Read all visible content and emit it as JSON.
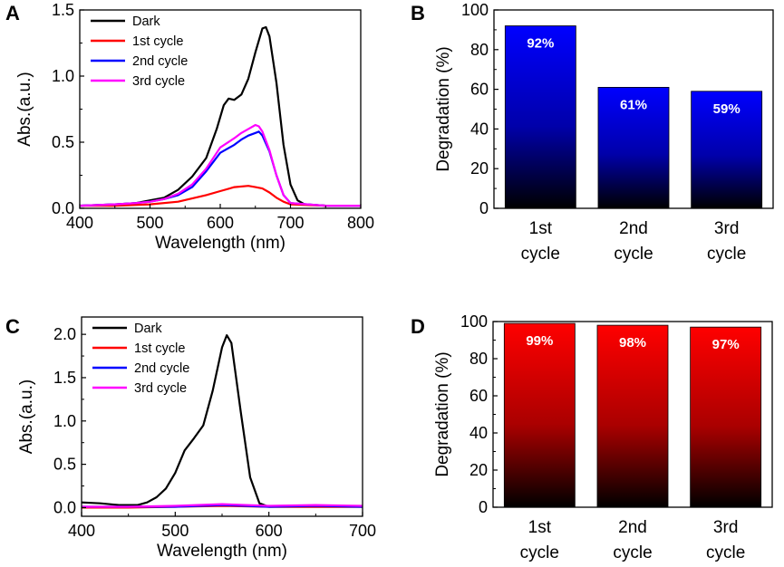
{
  "chart_data": [
    {
      "panel": "A",
      "type": "line",
      "xlabel": "Wavelength (nm)",
      "ylabel": "Abs.(a.u.)",
      "xlim": [
        400,
        800
      ],
      "ylim": [
        0,
        1.5
      ],
      "xticks": [
        400,
        500,
        600,
        700,
        800
      ],
      "yticks": [
        0.0,
        0.5,
        1.0,
        1.5
      ],
      "tick_labels_y": [
        "0.0",
        "0.5",
        "1.0",
        "1.5"
      ],
      "legend": "top-left",
      "grid": false,
      "series": [
        {
          "name": "Dark",
          "color": "#000000",
          "points": [
            [
              400,
              0.02
            ],
            [
              450,
              0.03
            ],
            [
              480,
              0.04
            ],
            [
              500,
              0.06
            ],
            [
              520,
              0.08
            ],
            [
              540,
              0.14
            ],
            [
              560,
              0.24
            ],
            [
              580,
              0.38
            ],
            [
              595,
              0.6
            ],
            [
              605,
              0.78
            ],
            [
              612,
              0.83
            ],
            [
              620,
              0.82
            ],
            [
              630,
              0.86
            ],
            [
              640,
              0.98
            ],
            [
              650,
              1.18
            ],
            [
              660,
              1.36
            ],
            [
              665,
              1.37
            ],
            [
              670,
              1.3
            ],
            [
              680,
              0.95
            ],
            [
              690,
              0.48
            ],
            [
              700,
              0.18
            ],
            [
              710,
              0.06
            ],
            [
              720,
              0.03
            ],
            [
              750,
              0.02
            ],
            [
              800,
              0.02
            ]
          ]
        },
        {
          "name": "1st cycle",
          "color": "#ff0000",
          "points": [
            [
              400,
              0.02
            ],
            [
              450,
              0.02
            ],
            [
              500,
              0.03
            ],
            [
              540,
              0.05
            ],
            [
              580,
              0.1
            ],
            [
              600,
              0.13
            ],
            [
              620,
              0.16
            ],
            [
              640,
              0.17
            ],
            [
              650,
              0.16
            ],
            [
              660,
              0.15
            ],
            [
              670,
              0.12
            ],
            [
              680,
              0.08
            ],
            [
              690,
              0.05
            ],
            [
              700,
              0.03
            ],
            [
              750,
              0.02
            ],
            [
              800,
              0.02
            ]
          ]
        },
        {
          "name": "2nd cycle",
          "color": "#0000ff",
          "points": [
            [
              400,
              0.02
            ],
            [
              450,
              0.03
            ],
            [
              480,
              0.04
            ],
            [
              500,
              0.05
            ],
            [
              520,
              0.07
            ],
            [
              540,
              0.1
            ],
            [
              560,
              0.16
            ],
            [
              580,
              0.28
            ],
            [
              600,
              0.42
            ],
            [
              620,
              0.48
            ],
            [
              630,
              0.52
            ],
            [
              640,
              0.55
            ],
            [
              650,
              0.57
            ],
            [
              655,
              0.58
            ],
            [
              660,
              0.55
            ],
            [
              670,
              0.43
            ],
            [
              680,
              0.25
            ],
            [
              690,
              0.1
            ],
            [
              700,
              0.04
            ],
            [
              750,
              0.02
            ],
            [
              800,
              0.02
            ]
          ]
        },
        {
          "name": "3rd cycle",
          "color": "#ff00ff",
          "points": [
            [
              400,
              0.02
            ],
            [
              450,
              0.03
            ],
            [
              480,
              0.04
            ],
            [
              500,
              0.05
            ],
            [
              520,
              0.07
            ],
            [
              540,
              0.11
            ],
            [
              560,
              0.18
            ],
            [
              580,
              0.3
            ],
            [
              600,
              0.46
            ],
            [
              620,
              0.53
            ],
            [
              630,
              0.57
            ],
            [
              640,
              0.6
            ],
            [
              650,
              0.63
            ],
            [
              655,
              0.62
            ],
            [
              660,
              0.58
            ],
            [
              670,
              0.44
            ],
            [
              680,
              0.25
            ],
            [
              690,
              0.1
            ],
            [
              700,
              0.04
            ],
            [
              750,
              0.02
            ],
            [
              800,
              0.02
            ]
          ]
        }
      ]
    },
    {
      "panel": "B",
      "type": "bar",
      "ylabel": "Degradation (%)",
      "ylim": [
        0,
        100
      ],
      "yticks": [
        0,
        20,
        40,
        60,
        80,
        100
      ],
      "categories": [
        [
          "1st",
          "cycle"
        ],
        [
          "2nd",
          "cycle"
        ],
        [
          "3rd",
          "cycle"
        ]
      ],
      "values": [
        92,
        61,
        59
      ],
      "value_labels": [
        "92%",
        "61%",
        "59%"
      ],
      "bar_color": "#0000ff"
    },
    {
      "panel": "C",
      "type": "line",
      "xlabel": "Wavelength (nm)",
      "ylabel": "Abs.(a.u.)",
      "xlim": [
        400,
        700
      ],
      "ylim": [
        -0.1,
        2.2
      ],
      "xticks": [
        400,
        500,
        600,
        700
      ],
      "yticks": [
        0.0,
        0.5,
        1.0,
        1.5,
        2.0
      ],
      "tick_labels_y": [
        "0.0",
        "0.5",
        "1.0",
        "1.5",
        "2.0"
      ],
      "legend": "top-left",
      "grid": false,
      "series": [
        {
          "name": "Dark",
          "color": "#000000",
          "points": [
            [
              400,
              0.06
            ],
            [
              420,
              0.05
            ],
            [
              440,
              0.03
            ],
            [
              460,
              0.03
            ],
            [
              470,
              0.06
            ],
            [
              480,
              0.12
            ],
            [
              490,
              0.22
            ],
            [
              500,
              0.4
            ],
            [
              510,
              0.66
            ],
            [
              520,
              0.8
            ],
            [
              530,
              0.95
            ],
            [
              540,
              1.35
            ],
            [
              550,
              1.85
            ],
            [
              555,
              1.99
            ],
            [
              560,
              1.9
            ],
            [
              570,
              1.1
            ],
            [
              580,
              0.35
            ],
            [
              590,
              0.05
            ],
            [
              600,
              0.01
            ],
            [
              650,
              0.01
            ],
            [
              700,
              0.01
            ]
          ]
        },
        {
          "name": "1st cycle",
          "color": "#ff0000",
          "points": [
            [
              400,
              0.0
            ],
            [
              450,
              0.0
            ],
            [
              500,
              0.01
            ],
            [
              550,
              0.02
            ],
            [
              600,
              0.01
            ],
            [
              650,
              0.01
            ],
            [
              700,
              0.01
            ]
          ]
        },
        {
          "name": "2nd cycle",
          "color": "#0000ff",
          "points": [
            [
              400,
              0.01
            ],
            [
              450,
              0.01
            ],
            [
              500,
              0.01
            ],
            [
              550,
              0.03
            ],
            [
              600,
              0.01
            ],
            [
              650,
              0.02
            ],
            [
              700,
              0.01
            ]
          ]
        },
        {
          "name": "3rd cycle",
          "color": "#ff00ff",
          "points": [
            [
              400,
              0.01
            ],
            [
              450,
              0.01
            ],
            [
              500,
              0.02
            ],
            [
              550,
              0.04
            ],
            [
              600,
              0.02
            ],
            [
              650,
              0.03
            ],
            [
              700,
              0.02
            ]
          ]
        }
      ]
    },
    {
      "panel": "D",
      "type": "bar",
      "ylabel": "Degradation (%)",
      "ylim": [
        0,
        100
      ],
      "yticks": [
        0,
        20,
        40,
        60,
        80,
        100
      ],
      "categories": [
        [
          "1st",
          "cycle"
        ],
        [
          "2nd",
          "cycle"
        ],
        [
          "3rd",
          "cycle"
        ]
      ],
      "values": [
        99,
        98,
        97
      ],
      "value_labels": [
        "99%",
        "98%",
        "97%"
      ],
      "bar_color": "#ff0000"
    }
  ]
}
